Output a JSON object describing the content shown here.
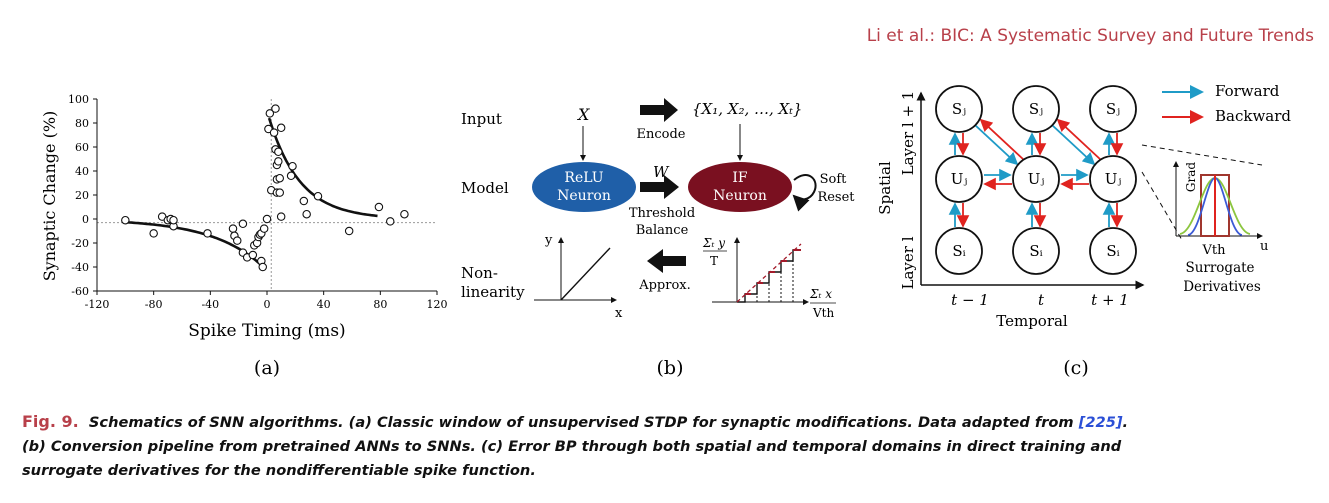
{
  "header": {
    "running_title": "Li et al.: BIC: A Systematic Survey and Future Trends"
  },
  "panel_a": {
    "label": "(a)",
    "chart_data": {
      "type": "scatter",
      "xlabel": "Spike Timing (ms)",
      "ylabel": "Synaptic Change (%)",
      "xlim": [
        -120,
        120
      ],
      "ylim": [
        -60,
        100
      ],
      "xticks": [
        "-120",
        "-80",
        "-40",
        "0",
        "40",
        "80",
        "120"
      ],
      "yticks": [
        "100",
        "80",
        "60",
        "40",
        "20",
        "0",
        "-20",
        "-40",
        "-60"
      ],
      "points": [
        [
          -100,
          -1
        ],
        [
          -80,
          -12
        ],
        [
          -74,
          2
        ],
        [
          -70,
          -1
        ],
        [
          -68,
          0
        ],
        [
          -66,
          -6
        ],
        [
          -66,
          -1
        ],
        [
          -42,
          -12
        ],
        [
          -24,
          -8
        ],
        [
          -23,
          -14
        ],
        [
          -21,
          -18
        ],
        [
          -17,
          -4
        ],
        [
          -17,
          -28
        ],
        [
          -14,
          -32
        ],
        [
          -10,
          -30
        ],
        [
          -9,
          -22
        ],
        [
          -7,
          -20
        ],
        [
          -6,
          -15
        ],
        [
          -5,
          -13
        ],
        [
          -4,
          -12
        ],
        [
          -4,
          -35
        ],
        [
          -3,
          -40
        ],
        [
          -2,
          -8
        ],
        [
          0,
          0
        ],
        [
          1,
          75
        ],
        [
          2,
          88
        ],
        [
          3,
          24
        ],
        [
          5,
          72
        ],
        [
          6,
          92
        ],
        [
          6,
          58
        ],
        [
          7,
          45
        ],
        [
          7,
          33
        ],
        [
          7,
          22
        ],
        [
          8,
          56
        ],
        [
          8,
          48
        ],
        [
          9,
          34
        ],
        [
          9,
          22
        ],
        [
          10,
          2
        ],
        [
          10,
          76
        ],
        [
          17,
          36
        ],
        [
          18,
          44
        ],
        [
          26,
          15
        ],
        [
          28,
          4
        ],
        [
          36,
          19
        ],
        [
          58,
          -10
        ],
        [
          79,
          10
        ],
        [
          87,
          -2
        ],
        [
          97,
          4
        ]
      ],
      "fit_ltp": {
        "A": 90,
        "tau": 22
      },
      "fit_ltd": {
        "A": -43,
        "tau": 36
      }
    }
  },
  "panel_b": {
    "label": "(b)",
    "rows": {
      "input": "Input",
      "model": "Model",
      "nonlin_1": "Non-",
      "nonlin_2": "linearity"
    },
    "x_symbol": "X",
    "seq": "{X₁, X₂, …, Xₜ}",
    "encode": "Encode",
    "w_symbol": "W",
    "relu_1": "ReLU",
    "relu_2": "Neuron",
    "if_1": "IF",
    "if_2": "Neuron",
    "thresh_1": "Threshold",
    "thresh_2": "Balance",
    "soft_1": "Soft",
    "soft_2": "Reset",
    "approx": "Approx.",
    "relu_y": "y",
    "relu_x": "x",
    "step_num": "Σₜ y",
    "step_den": "T",
    "step_xnum": "Σₜ x",
    "step_xden": "Vth",
    "colors": {
      "relu": "#1f5fa8",
      "if": "#7a1020",
      "dash": "#a31a2a"
    }
  },
  "panel_c": {
    "label": "(c)",
    "legend_forward": "Forward",
    "legend_backward": "Backward",
    "layer_top": "Layer l + 1",
    "layer_bottom": "Layer l",
    "spatial": "Spatial",
    "temporal": "Temporal",
    "times": [
      "t − 1",
      "t",
      "t + 1"
    ],
    "node_s_top": "Sⱼ",
    "node_u": "Uⱼ",
    "node_s_bot": "Sᵢ",
    "grad": "Grad",
    "u_axis": "u",
    "vth": "Vth",
    "surrogate_1": "Surrogate",
    "surrogate_2": "Derivatives",
    "colors": {
      "forward": "#1f9bc7",
      "backward": "#e0231f",
      "green": "#8cc63f",
      "blue": "#3b5bd6",
      "box": "#a0362e"
    }
  },
  "caption": {
    "fig_label": "Fig. 9.",
    "text_1": "Schematics of SNN algorithms. (a) Classic window of unsupervised STDP for synaptic modifications. Data adapted from",
    "ref": "[225]",
    "text_2": ".",
    "text_3": "(b) Conversion pipeline from pretrained ANNs to SNNs. (c) Error BP through both spatial and temporal domains in direct training and",
    "text_4": "surrogate derivatives for the nondifferentiable spike function."
  }
}
